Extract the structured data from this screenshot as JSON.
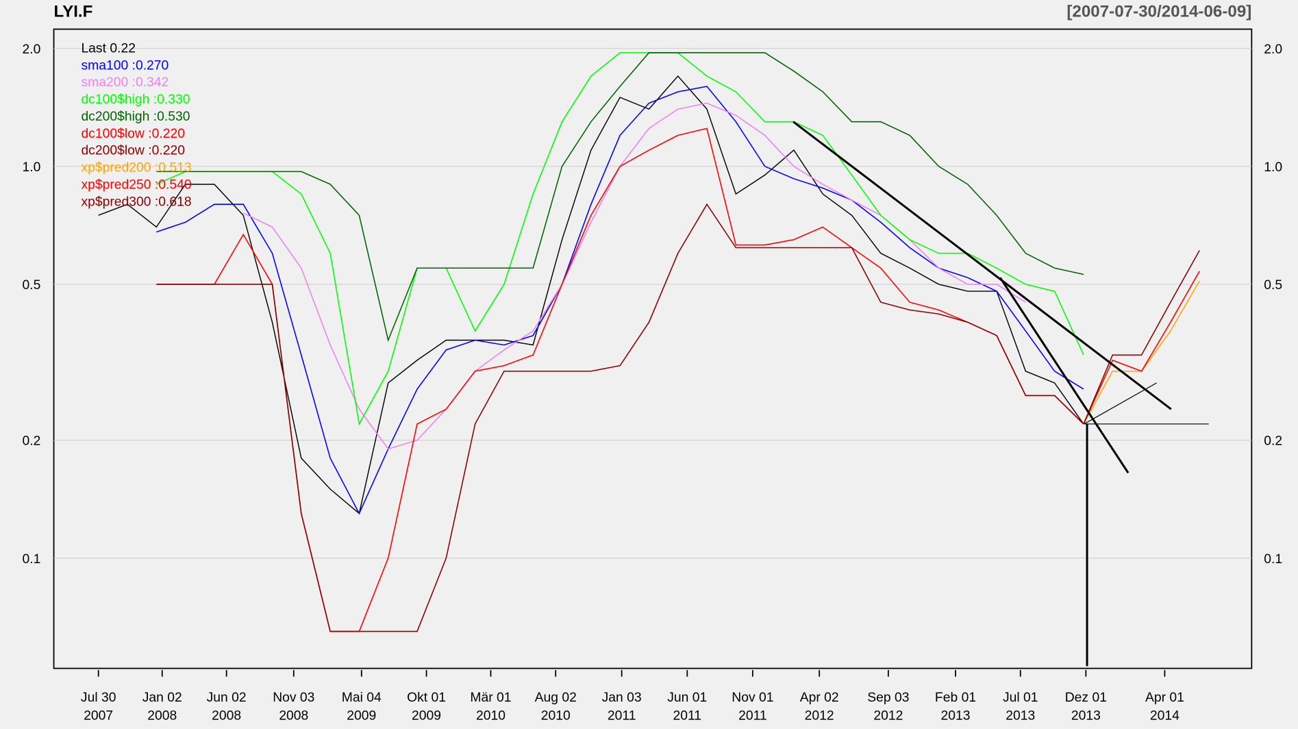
{
  "chart_data": {
    "type": "line",
    "title": "LYI.F",
    "subtitle": "[2007-07-30/2014-06-09]",
    "log_y": true,
    "grid": true,
    "ylim": [
      0.0523,
      2.24
    ],
    "yticks": [
      0.1,
      0.2,
      0.5,
      {
        "value": 1,
        "label": "1.0"
      },
      {
        "value": 2,
        "label": "2.0"
      }
    ],
    "xlim": [
      -77,
      1990
    ],
    "xticks": [
      {
        "value": 0,
        "label": "Jul 30\n2007"
      },
      {
        "value": 110,
        "label": "Jan 02\n2008"
      },
      {
        "value": 221,
        "label": "Jun 02\n2008"
      },
      {
        "value": 337,
        "label": "Nov 03\n2008"
      },
      {
        "value": 454,
        "label": "Mai 04\n2009"
      },
      {
        "value": 566,
        "label": "Okt 01\n2009"
      },
      {
        "value": 677,
        "label": "Mär 01\n2010"
      },
      {
        "value": 789,
        "label": "Aug 02\n2010"
      },
      {
        "value": 903,
        "label": "Jan 03\n2011"
      },
      {
        "value": 1016,
        "label": "Jun 01\n2011"
      },
      {
        "value": 1129,
        "label": "Nov 01\n2011"
      },
      {
        "value": 1244,
        "label": "Apr 02\n2012"
      },
      {
        "value": 1363,
        "label": "Sep 03\n2012"
      },
      {
        "value": 1479,
        "label": "Feb 01\n2013"
      },
      {
        "value": 1591,
        "label": "Jul 01\n2013"
      },
      {
        "value": 1704,
        "label": "Dez 01\n2013"
      },
      {
        "value": 1840,
        "label": "Apr 01\n2014"
      }
    ],
    "x": [
      0,
      50,
      100,
      150,
      200,
      250,
      300,
      350,
      400,
      450,
      500,
      550,
      600,
      650,
      700,
      750,
      800,
      850,
      900,
      950,
      1000,
      1050,
      1100,
      1150,
      1200,
      1250,
      1300,
      1350,
      1400,
      1450,
      1500,
      1550,
      1600,
      1650,
      1700,
      1750,
      1800,
      1850,
      1900
    ],
    "series": [
      {
        "name": "Last 0.22",
        "color": "#000000",
        "values": [
          0.75,
          0.8,
          0.7,
          0.9,
          0.9,
          0.75,
          0.4,
          0.18,
          0.15,
          0.13,
          0.28,
          0.32,
          0.36,
          0.36,
          0.36,
          0.35,
          0.65,
          1.1,
          1.5,
          1.4,
          1.7,
          1.4,
          0.85,
          0.95,
          1.1,
          0.85,
          0.75,
          0.6,
          0.55,
          0.5,
          0.48,
          0.48,
          0.3,
          0.28,
          0.22,
          null,
          null,
          null,
          null
        ]
      },
      {
        "name": "sma100 :0.270",
        "color": "#0000ff",
        "values": [
          null,
          null,
          0.68,
          0.72,
          0.8,
          0.8,
          0.6,
          0.33,
          0.18,
          0.13,
          0.19,
          0.27,
          0.34,
          0.36,
          0.35,
          0.37,
          0.5,
          0.8,
          1.2,
          1.45,
          1.55,
          1.6,
          1.3,
          1.0,
          0.93,
          0.88,
          0.82,
          0.72,
          0.62,
          0.55,
          0.52,
          0.48,
          0.38,
          0.3,
          0.27,
          null,
          null,
          null,
          null
        ]
      },
      {
        "name": "sma200 :0.342",
        "color": "#ee82ee",
        "values": [
          null,
          null,
          null,
          null,
          null,
          0.76,
          0.7,
          0.55,
          0.35,
          0.24,
          0.19,
          0.2,
          0.24,
          0.3,
          0.34,
          0.38,
          0.5,
          0.72,
          1.0,
          1.25,
          1.4,
          1.45,
          1.35,
          1.2,
          1.0,
          0.9,
          0.82,
          0.75,
          0.65,
          0.55,
          0.5,
          0.5,
          0.45,
          null,
          null,
          null,
          null,
          null,
          null
        ]
      },
      {
        "name": "dc100$high :0.330",
        "color": "#00ff00",
        "values": [
          null,
          null,
          0.9,
          0.97,
          0.97,
          0.97,
          0.97,
          0.85,
          0.6,
          0.22,
          0.3,
          0.55,
          0.55,
          0.38,
          0.5,
          0.85,
          1.3,
          1.7,
          1.95,
          1.95,
          1.95,
          1.7,
          1.55,
          1.3,
          1.3,
          1.2,
          0.95,
          0.75,
          0.65,
          0.6,
          0.6,
          0.55,
          0.5,
          0.48,
          0.33,
          null,
          null,
          null,
          null
        ]
      },
      {
        "name": "dc200$high :0.530",
        "color": "#006400",
        "values": [
          null,
          null,
          0.97,
          0.97,
          0.97,
          0.97,
          0.97,
          0.97,
          0.9,
          0.75,
          0.36,
          0.55,
          0.55,
          0.55,
          0.55,
          0.55,
          1.0,
          1.3,
          1.6,
          1.95,
          1.95,
          1.95,
          1.95,
          1.95,
          1.75,
          1.55,
          1.3,
          1.3,
          1.2,
          1.0,
          0.9,
          0.75,
          0.6,
          0.55,
          0.53,
          null,
          null,
          null,
          null
        ]
      },
      {
        "name": "dc100$low :0.220",
        "color": "#ff0000",
        "values": [
          null,
          null,
          0.5,
          0.5,
          0.5,
          0.67,
          0.5,
          0.13,
          0.065,
          0.065,
          0.1,
          0.22,
          0.24,
          0.3,
          0.31,
          0.33,
          0.5,
          0.75,
          1.0,
          1.1,
          1.2,
          1.25,
          0.63,
          0.63,
          0.65,
          0.7,
          0.62,
          0.55,
          0.45,
          0.43,
          0.4,
          0.37,
          0.26,
          0.26,
          0.22,
          null,
          null,
          null,
          null
        ]
      },
      {
        "name": "dc200$low :0.220",
        "color": "#8b0000",
        "values": [
          null,
          null,
          0.5,
          0.5,
          0.5,
          0.5,
          0.5,
          0.13,
          0.065,
          0.065,
          0.065,
          0.065,
          0.1,
          0.22,
          0.3,
          0.3,
          0.3,
          0.3,
          0.31,
          0.4,
          0.6,
          0.8,
          0.62,
          0.62,
          0.62,
          0.62,
          0.62,
          0.45,
          0.43,
          0.42,
          0.4,
          0.37,
          0.26,
          0.26,
          0.22,
          null,
          null,
          null,
          null
        ]
      },
      {
        "name": "xp$pred200 :0.513",
        "color": "#ffa500",
        "values": [
          null,
          null,
          null,
          null,
          null,
          null,
          null,
          null,
          null,
          null,
          null,
          null,
          null,
          null,
          null,
          null,
          null,
          null,
          null,
          null,
          null,
          null,
          null,
          null,
          null,
          null,
          null,
          null,
          null,
          null,
          null,
          null,
          null,
          null,
          0.22,
          0.3,
          0.3,
          0.38,
          0.51
        ]
      },
      {
        "name": "xp$pred250 :0.540",
        "color": "#ff0000",
        "values": [
          null,
          null,
          null,
          null,
          null,
          null,
          null,
          null,
          null,
          null,
          null,
          null,
          null,
          null,
          null,
          null,
          null,
          null,
          null,
          null,
          null,
          null,
          null,
          null,
          null,
          null,
          null,
          null,
          null,
          null,
          null,
          null,
          null,
          null,
          0.22,
          0.32,
          0.3,
          0.4,
          0.54
        ]
      },
      {
        "name": "xp$pred300 :0.618",
        "color": "#8b0000",
        "values": [
          null,
          null,
          null,
          null,
          null,
          null,
          null,
          null,
          null,
          null,
          null,
          null,
          null,
          null,
          null,
          null,
          null,
          null,
          null,
          null,
          null,
          null,
          null,
          null,
          null,
          null,
          null,
          null,
          null,
          null,
          null,
          null,
          null,
          null,
          0.22,
          0.33,
          0.33,
          0.45,
          0.61
        ]
      }
    ],
    "trend_lines": [
      {
        "x": [
          1199,
          1851
        ],
        "y": [
          1.3,
          0.24
        ]
      },
      {
        "x": [
          1556,
          1777
        ],
        "y": [
          0.52,
          0.165
        ]
      },
      {
        "x": [
          1701,
          1826
        ],
        "y": [
          0.22,
          0.28
        ]
      },
      {
        "x": [
          1701,
          1916
        ],
        "y": [
          0.22,
          0.22
        ]
      },
      {
        "x": [
          1706,
          1706
        ],
        "y": [
          0.053,
          0.22
        ]
      }
    ]
  }
}
